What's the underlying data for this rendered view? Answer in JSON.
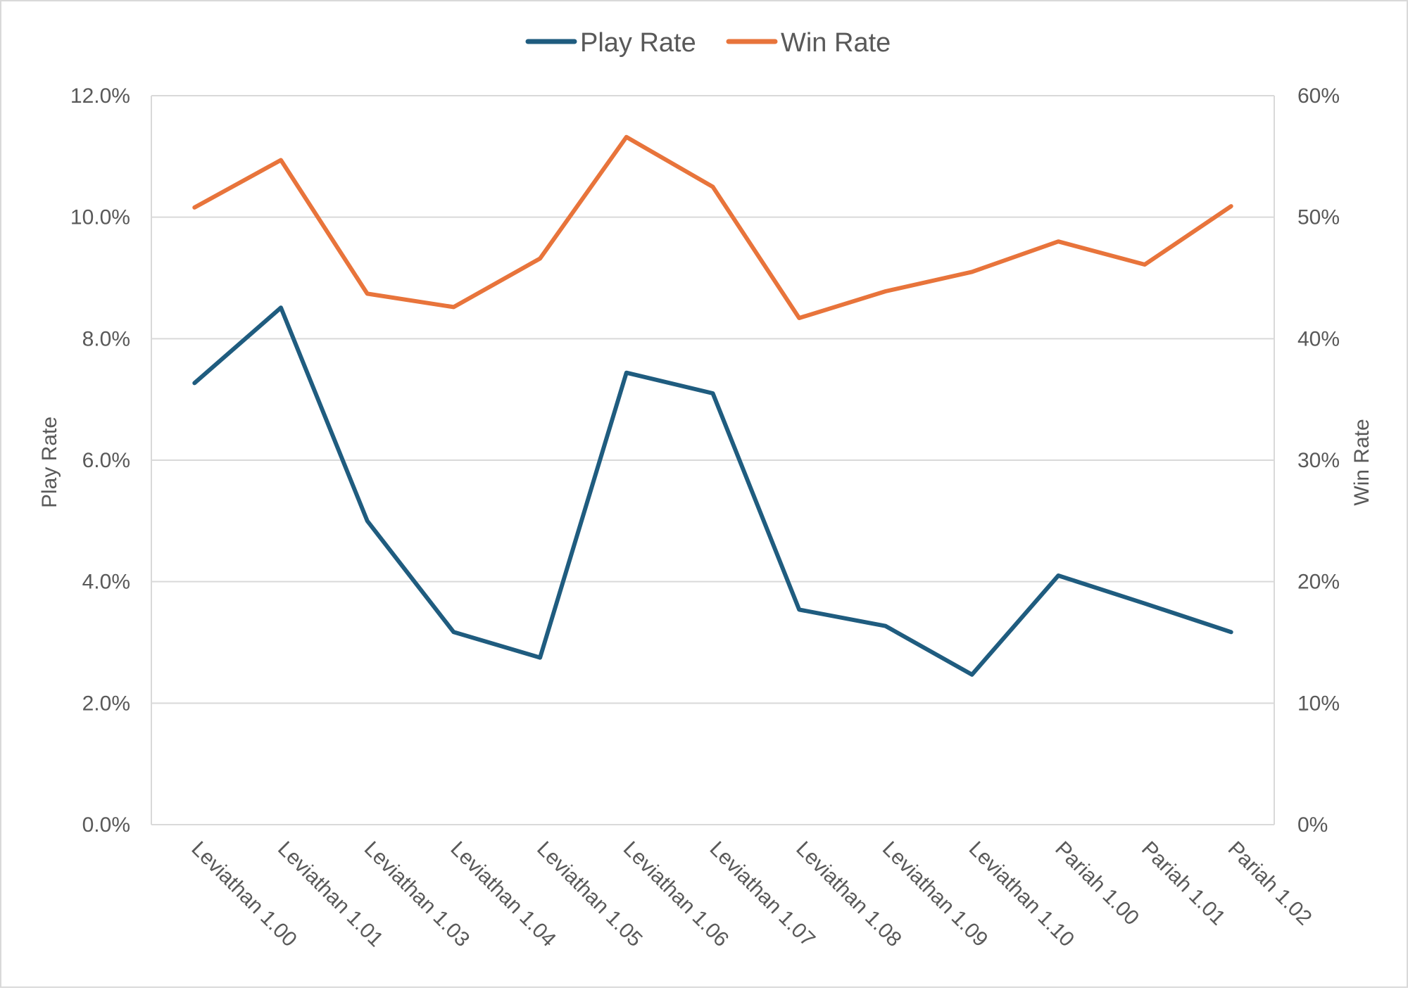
{
  "chart_data": {
    "type": "line",
    "categories": [
      "Leviathan 1.00",
      "Leviathan 1.01",
      "Leviathan 1.03",
      "Leviathan 1.04",
      "Leviathan 1.05",
      "Leviathan 1.06",
      "Leviathan 1.07",
      "Leviathan 1.08",
      "Leviathan 1.09",
      "Leviathan 1.10",
      "Pariah 1.00",
      "Pariah 1.01",
      "Pariah 1.02"
    ],
    "series": [
      {
        "name": "Play Rate",
        "axis": "left",
        "color": "#1f5c7f",
        "values": [
          0.0727,
          0.0851,
          0.05,
          0.0317,
          0.0275,
          0.0744,
          0.071,
          0.0354,
          0.0327,
          0.0247,
          0.041,
          0.0364,
          0.0317
        ]
      },
      {
        "name": "Win Rate",
        "axis": "right",
        "color": "#e8743b",
        "values": [
          0.508,
          0.547,
          0.437,
          0.426,
          0.466,
          0.566,
          0.525,
          0.417,
          0.439,
          0.455,
          0.48,
          0.461,
          0.509
        ]
      }
    ],
    "ylabel": "Play Rate",
    "y2label": "Win Rate",
    "ylim": [
      0,
      0.12
    ],
    "y2lim": [
      0,
      0.6
    ],
    "yticks": [
      "0.0%",
      "2.0%",
      "4.0%",
      "6.0%",
      "8.0%",
      "10.0%",
      "12.0%"
    ],
    "y2ticks": [
      "0%",
      "10%",
      "20%",
      "30%",
      "40%",
      "50%",
      "60%"
    ],
    "grid": true,
    "legend_position": "top-center"
  }
}
